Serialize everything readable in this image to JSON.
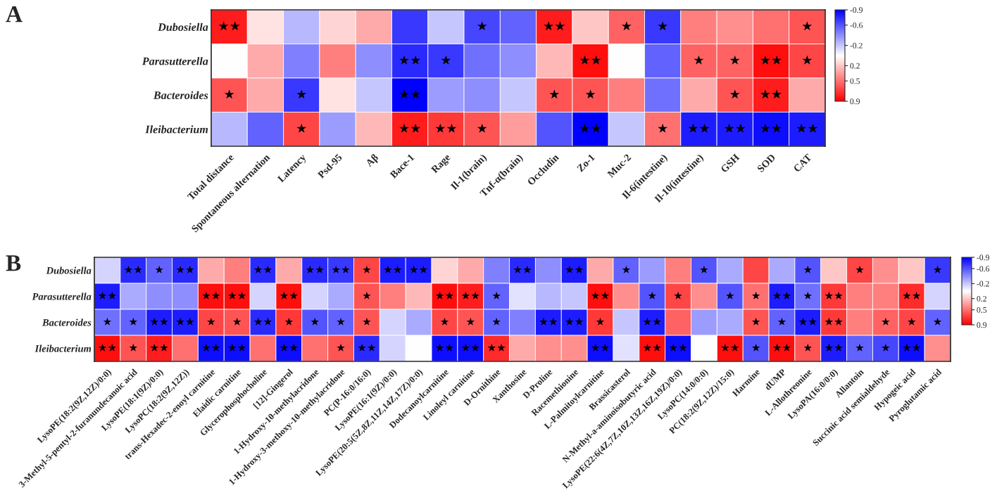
{
  "chart_data": [
    {
      "type": "heatmap",
      "annotations": [
        "A"
      ],
      "categories": [
        "Total distance",
        "Spontaneous alternation",
        "Latency",
        "Psd-95",
        "Aβ",
        "Bace-1",
        "Rage",
        "Il-1(brain)",
        "Tnf-α(brain)",
        "Occludin",
        "Zo-1",
        "Muc-2",
        "Il-6(intestine)",
        "Il-10(intestine)",
        "GSH",
        "SOD",
        "CAT"
      ],
      "y_categories": [
        "Dubosiella",
        "Parasutterella",
        "Bacteroides",
        "Ileibacterium"
      ],
      "cells": [
        [
          0.8,
          0.1,
          -0.25,
          0.15,
          0.3,
          -0.7,
          -0.2,
          -0.65,
          -0.55,
          0.8,
          0.2,
          0.55,
          -0.7,
          0.45,
          0.4,
          0.5,
          0.6
        ],
        [
          0.0,
          0.3,
          -0.45,
          0.45,
          -0.4,
          -0.75,
          -0.7,
          -0.5,
          -0.4,
          0.25,
          0.85,
          0.0,
          -0.55,
          0.55,
          0.55,
          0.85,
          0.65
        ],
        [
          0.6,
          0.3,
          -0.7,
          0.1,
          -0.2,
          -0.9,
          -0.35,
          -0.4,
          -0.2,
          0.6,
          0.6,
          0.45,
          -0.5,
          0.3,
          0.6,
          0.8,
          0.3
        ],
        [
          -0.25,
          -0.55,
          0.65,
          -0.35,
          0.25,
          0.8,
          0.7,
          0.6,
          0.35,
          -0.6,
          -0.9,
          -0.2,
          0.5,
          -0.8,
          -0.8,
          -0.85,
          -0.8
        ]
      ],
      "cell_labels": [
        [
          "★★",
          null,
          null,
          null,
          null,
          null,
          null,
          "★",
          null,
          "★★",
          null,
          "★",
          "★",
          null,
          null,
          null,
          "★"
        ],
        [
          null,
          null,
          null,
          null,
          null,
          "★★",
          "★",
          null,
          null,
          null,
          "★★",
          null,
          null,
          "★",
          "★",
          "★★",
          "★"
        ],
        [
          "★",
          null,
          "★",
          null,
          null,
          "★★",
          null,
          null,
          null,
          "★",
          "★",
          null,
          null,
          null,
          "★",
          "★★",
          null
        ],
        [
          null,
          null,
          "★",
          null,
          null,
          "★★",
          "★★",
          "★",
          null,
          null,
          "★★",
          null,
          "★",
          "★★",
          "★★",
          "★★",
          "★★"
        ]
      ],
      "clim": [
        -0.9,
        0.9
      ],
      "cticks": [
        -0.9,
        -0.6,
        -0.2,
        0.2,
        0.5,
        0.9
      ]
    },
    {
      "type": "heatmap",
      "annotations": [
        "B"
      ],
      "categories": [
        "LysoPE(18:2(9Z,12Z)/0:0)",
        "3-Methyl-5-pentyl-2-furanundecanoic acid",
        "LysoPE(18:1(9Z)/0:0)",
        "LysoPC(18:2(9Z,12Z))",
        "trans-Hexadec-2-enoyl carnitine",
        "Elaidic carnitine",
        "Glycerophosphocholine",
        "[12]-Gingerol",
        "1-Hydroxy-10-methylacridone",
        "1-Hydroxy-3-methoxy-10-methylacridone",
        "PC(P-16:0/16:0)",
        "LysoPE(16:1(9Z)/0:0)",
        "LysoPE(20:5(5Z,8Z,11Z,14Z,17Z)/0:0)",
        "Dodecanoylcarnitine",
        "Linoleyl carnitine",
        "D-Ornithine",
        "Xanthosine",
        "D-Proline",
        "Racemethionine",
        "L-Palmitoylcarnitine",
        "Brassicasterol",
        "N-Methyl-a-aminoisobutyric acid",
        "LysoPE(22:6(4Z,7Z,10Z,13Z,16Z,19Z)/0:0)",
        "LysoPC(14:0/0:0)",
        "PC(18:2(9Z,12Z)/15:0)",
        "Harmine",
        "dUMP",
        "L-Allothreonine",
        "LysoPA(16:0/0:0)",
        "Allantoin",
        "Succinic acid semialdehyde",
        "Hypogeic acid",
        "Pyroglutamic acid"
      ],
      "y_categories": [
        "Dubosiella",
        "Parasutterella",
        "Bacteroides",
        "Ileibacterium"
      ],
      "cells": [
        [
          -0.15,
          -0.75,
          -0.55,
          -0.75,
          0.3,
          0.45,
          -0.75,
          0.3,
          -0.75,
          -0.7,
          0.65,
          -0.8,
          -0.8,
          0.15,
          0.3,
          -0.45,
          -0.75,
          -0.4,
          -0.8,
          0.3,
          -0.55,
          -0.35,
          0.45,
          -0.6,
          -0.3,
          0.65,
          -0.3,
          -0.6,
          0.2,
          0.65,
          0.4,
          0.2,
          -0.7
        ],
        [
          -0.8,
          -0.3,
          -0.4,
          -0.4,
          0.85,
          0.85,
          -0.15,
          0.85,
          -0.15,
          -0.3,
          0.6,
          0.45,
          0.25,
          0.85,
          0.8,
          -0.55,
          -0.1,
          -0.25,
          -0.2,
          0.85,
          0.4,
          -0.6,
          0.65,
          0.4,
          -0.6,
          0.5,
          -0.8,
          -0.5,
          0.7,
          0.45,
          0.45,
          0.75,
          -0.15
        ],
        [
          -0.5,
          -0.55,
          -0.8,
          -0.8,
          0.65,
          0.6,
          -0.75,
          0.7,
          -0.6,
          -0.55,
          0.6,
          -0.15,
          -0.3,
          0.65,
          0.6,
          -0.55,
          -0.45,
          -0.8,
          -0.8,
          0.7,
          -0.2,
          -0.8,
          0.55,
          -0.35,
          -0.3,
          0.6,
          -0.55,
          -0.8,
          0.7,
          0.45,
          0.55,
          0.65,
          -0.55
        ],
        [
          0.85,
          0.6,
          0.8,
          0.5,
          -0.85,
          -0.85,
          0.5,
          -0.85,
          0.5,
          0.6,
          -0.75,
          -0.15,
          0.0,
          -0.85,
          -0.85,
          0.75,
          0.3,
          0.4,
          0.4,
          -0.85,
          -0.1,
          0.85,
          -0.85,
          0.0,
          0.85,
          -0.6,
          0.85,
          0.6,
          -0.8,
          -0.55,
          -0.65,
          -0.85,
          0.4
        ]
      ],
      "cell_labels": [
        [
          null,
          "★★",
          "★",
          "★★",
          null,
          null,
          "★★",
          null,
          "★★",
          "★★",
          "★",
          "★★",
          "★★",
          null,
          null,
          null,
          "★★",
          null,
          "★★",
          null,
          "★",
          null,
          null,
          "★",
          null,
          null,
          null,
          "★",
          null,
          "★",
          null,
          null,
          "★"
        ],
        [
          "★★",
          null,
          null,
          null,
          "★★",
          "★★",
          null,
          "★★",
          null,
          null,
          "★",
          null,
          null,
          "★★",
          "★★",
          "★",
          null,
          null,
          null,
          "★★",
          null,
          "★",
          "★",
          null,
          "★",
          "★",
          "★★",
          "★",
          "★★",
          null,
          null,
          "★★",
          null
        ],
        [
          "★",
          "★",
          "★★",
          "★★",
          "★",
          "★",
          "★★",
          "★",
          "★",
          "★",
          "★",
          null,
          null,
          "★",
          "★",
          "★",
          null,
          "★★",
          "★★",
          "★",
          null,
          "★★",
          null,
          null,
          null,
          "★",
          "★",
          "★★",
          "★★",
          null,
          "★",
          "★",
          "★"
        ],
        [
          "★★",
          "★",
          "★★",
          null,
          "★★",
          "★★",
          null,
          "★★",
          null,
          "★",
          "★★",
          null,
          null,
          "★★",
          "★★",
          "★★",
          null,
          null,
          null,
          "★★",
          null,
          "★★",
          "★★",
          null,
          "★★",
          "★",
          "★★",
          "★",
          "★★",
          "★",
          "★",
          "★★",
          null
        ]
      ],
      "clim": [
        -0.9,
        0.9
      ],
      "cticks": [
        -0.9,
        -0.6,
        -0.2,
        0.2,
        0.5,
        0.9
      ]
    }
  ]
}
